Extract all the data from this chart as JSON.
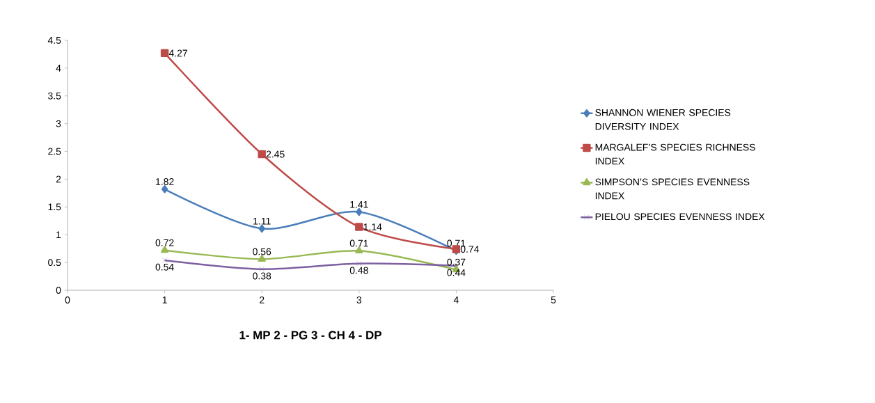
{
  "chart_data": {
    "type": "line",
    "xlabel": "**1- MP   2 - PG   3 - CH   4 - DP**",
    "x": [
      1,
      2,
      3,
      4
    ],
    "xlim": [
      0,
      5
    ],
    "xticks": [
      0,
      1,
      2,
      3,
      4,
      5
    ],
    "ylim": [
      0,
      4.5
    ],
    "yticks": [
      0,
      0.5,
      1,
      1.5,
      2,
      2.5,
      3,
      3.5,
      4,
      4.5
    ],
    "grid": false,
    "legend": "right",
    "data_labels": true,
    "series": [
      {
        "name": "SHANNON WIENER SPECIES DIVERSITY INDEX",
        "color": "#4a7ebb",
        "marker": "diamond",
        "values": [
          1.82,
          1.11,
          1.41,
          0.71
        ]
      },
      {
        "name": "MARGALEF’S SPECIES RICHNESS INDEX",
        "color": "#be4b48",
        "marker": "square",
        "values": [
          4.27,
          2.45,
          1.14,
          0.74
        ]
      },
      {
        "name": "SIMPSON’S SPECIES EVENNESS INDEX",
        "color": "#98b954",
        "marker": "triangle",
        "values": [
          0.72,
          0.56,
          0.71,
          0.37
        ]
      },
      {
        "name": "PIELOU SPECIES EVENNESS INDEX",
        "color": "#7d60a0",
        "marker": "cross",
        "values": [
          0.54,
          0.38,
          0.48,
          0.44
        ]
      }
    ]
  }
}
